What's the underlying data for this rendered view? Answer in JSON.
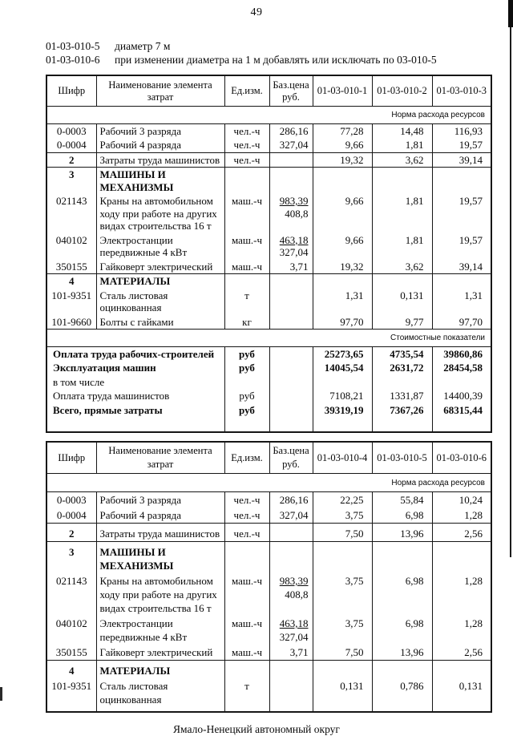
{
  "colors": {
    "ink": "#161616",
    "paper": "#ffffff"
  },
  "page": {
    "number": "49",
    "footer": "Ямало-Ненецкий автономный округ"
  },
  "intro": [
    {
      "code": "01-03-010-5",
      "text": "диаметр 7 м"
    },
    {
      "code": "01-03-010-6",
      "text": "при изменении диаметра на 1 м добавлять или исключать по 03-010-5"
    }
  ],
  "tables": [
    {
      "columns": [
        "Шифр",
        "Наименование элемента затрат",
        "Ед.изм.",
        "Баз.цена руб.",
        "01-03-010-1",
        "01-03-010-2",
        "01-03-010-3"
      ],
      "norm_band": "Норма расхода ресурсов",
      "rows": [
        {
          "code": "0-0003",
          "name": [
            "Рабочий 3 разряда"
          ],
          "unit": "чел.-ч",
          "base": [
            "286,16"
          ],
          "values": [
            "77,28",
            "14,48",
            "116,93"
          ]
        },
        {
          "code": "0-0004",
          "name": [
            "Рабочий 4 разряда"
          ],
          "unit": "чел.-ч",
          "base": [
            "327,04"
          ],
          "values": [
            "9,66",
            "1,81",
            "19,57"
          ]
        },
        {
          "code": "2",
          "bold_code": true,
          "sep": true,
          "name": [
            "Затраты труда машинистов"
          ],
          "unit": "чел.-ч",
          "base": [],
          "values": [
            "19,32",
            "3,62",
            "39,14"
          ]
        },
        {
          "code": "3",
          "bold_code": true,
          "bold_name": true,
          "sep": true,
          "name": [
            "МАШИНЫ И",
            "МЕХАНИЗМЫ"
          ],
          "unit": "",
          "base": [],
          "values": [
            "",
            "",
            ""
          ]
        },
        {
          "code": "021143",
          "name": [
            "Краны на автомобильном",
            "ходу при работе на других",
            "видах строительства 16 т"
          ],
          "unit": "маш.-ч",
          "base": [
            "983,39",
            "408,8"
          ],
          "base_underline": true,
          "values": [
            "9,66",
            "1,81",
            "19,57"
          ]
        },
        {
          "code": "040102",
          "name": [
            "Электростанции",
            "передвижные 4 кВт"
          ],
          "unit": "маш.-ч",
          "base": [
            "463,18",
            "327,04"
          ],
          "base_underline": true,
          "values": [
            "9,66",
            "1,81",
            "19,57"
          ]
        },
        {
          "code": "350155",
          "name": [
            "Гайковерт электрический"
          ],
          "unit": "маш.-ч",
          "base": [
            "3,71"
          ],
          "values": [
            "19,32",
            "3,62",
            "39,14"
          ]
        },
        {
          "code": "4",
          "bold_code": true,
          "bold_name": true,
          "sep": true,
          "name": [
            "МАТЕРИАЛЫ"
          ],
          "unit": "",
          "base": [],
          "values": [
            "",
            "",
            ""
          ]
        },
        {
          "code": "101-9351",
          "name": [
            "Сталь листовая",
            "оцинкованная"
          ],
          "unit": "т",
          "base": [],
          "values": [
            "1,31",
            "0,131",
            "1,31"
          ]
        },
        {
          "code": "101-9660",
          "name": [
            "Болты с гайками"
          ],
          "unit": "кг",
          "base": [],
          "values": [
            "97,70",
            "9,77",
            "97,70"
          ]
        }
      ],
      "cost_band": "Стоимостные показатели",
      "cost_rows": [
        {
          "label": "Оплата труда рабочих-строителей",
          "unit": "руб",
          "values": [
            "25273,65",
            "4735,54",
            "39860,86"
          ],
          "bold": true
        },
        {
          "label": "Эксплуатация машин",
          "unit": "руб",
          "values": [
            "14045,54",
            "2631,72",
            "28454,58"
          ],
          "bold": true
        },
        {
          "label": "в том числе",
          "unit": "",
          "values": [
            "",
            "",
            ""
          ],
          "bold": false
        },
        {
          "label": "Оплата труда машинистов",
          "unit": "руб",
          "values": [
            "7108,21",
            "1331,87",
            "14400,39"
          ],
          "bold": false
        },
        {
          "label": "Всего, прямые затраты",
          "unit": "руб",
          "values": [
            "39319,19",
            "7367,26",
            "68315,44"
          ],
          "bold": true
        }
      ]
    },
    {
      "columns": [
        "Шифр",
        "Наименование элемента затрат",
        "Ед.изм.",
        "Баз.цена руб.",
        "01-03-010-4",
        "01-03-010-5",
        "01-03-010-6"
      ],
      "norm_band": "Норма расхода ресурсов",
      "rows": [
        {
          "code": "0-0003",
          "name": [
            "Рабочий 3 разряда"
          ],
          "unit": "чел.-ч",
          "base": [
            "286,16"
          ],
          "values": [
            "22,25",
            "55,84",
            "10,24"
          ]
        },
        {
          "code": "0-0004",
          "name": [
            "Рабочий 4 разряда"
          ],
          "unit": "чел.-ч",
          "base": [
            "327,04"
          ],
          "values": [
            "3,75",
            "6,98",
            "1,28"
          ]
        },
        {
          "code": "2",
          "bold_code": true,
          "sep": true,
          "name": [
            "Затраты труда машинистов"
          ],
          "unit": "чел.-ч",
          "base": [],
          "values": [
            "7,50",
            "13,96",
            "2,56"
          ]
        },
        {
          "code": "3",
          "bold_code": true,
          "bold_name": true,
          "sep": true,
          "name": [
            "МАШИНЫ И",
            "МЕХАНИЗМЫ"
          ],
          "unit": "",
          "base": [],
          "values": [
            "",
            "",
            ""
          ]
        },
        {
          "code": "021143",
          "name": [
            "Краны на автомобильном",
            "ходу при работе на других",
            "видах строительства 16 т"
          ],
          "unit": "маш.-ч",
          "base": [
            "983,39",
            "408,8"
          ],
          "base_underline": true,
          "values": [
            "3,75",
            "6,98",
            "1,28"
          ]
        },
        {
          "code": "040102",
          "name": [
            "Электростанции",
            "передвижные 4 кВт"
          ],
          "unit": "маш.-ч",
          "base": [
            "463,18",
            "327,04"
          ],
          "base_underline": true,
          "values": [
            "3,75",
            "6,98",
            "1,28"
          ]
        },
        {
          "code": "350155",
          "name": [
            "Гайковерт электрический"
          ],
          "unit": "маш.-ч",
          "base": [
            "3,71"
          ],
          "values": [
            "7,50",
            "13,96",
            "2,56"
          ]
        },
        {
          "code": "4",
          "bold_code": true,
          "bold_name": true,
          "sep": true,
          "name": [
            "МАТЕРИАЛЫ"
          ],
          "unit": "",
          "base": [],
          "values": [
            "",
            "",
            ""
          ]
        },
        {
          "code": "101-9351",
          "name": [
            "Сталь листовая",
            "оцинкованная"
          ],
          "unit": "т",
          "base": [],
          "values": [
            "0,131",
            "0,786",
            "0,131"
          ]
        }
      ]
    }
  ]
}
